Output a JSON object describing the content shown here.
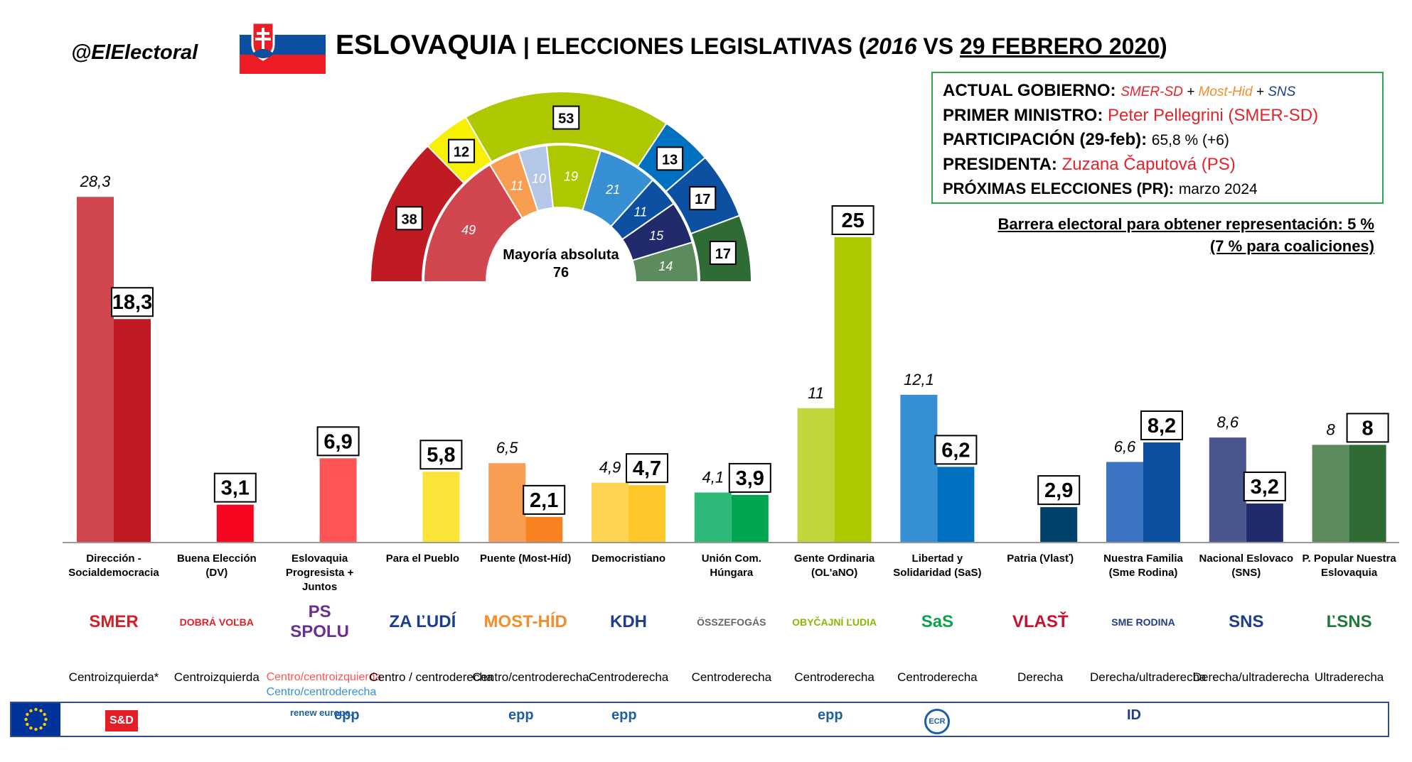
{
  "handle": "@ElElectoral",
  "title": {
    "country": "ESLOVAQUIA",
    "sep": " | ",
    "main": "ELECCIONES LEGISLATIVAS (",
    "year_prev": "2016",
    "vs": " VS ",
    "date_new": "29 FEBRERO 2020",
    "close": ")"
  },
  "info": {
    "gov_label": "ACTUAL GOBIERNO:",
    "gov_p1": "SMER-SD",
    "plus1": " + ",
    "gov_p2": "Most-Hid",
    "plus2": " + ",
    "gov_p3": "SNS",
    "pm_label": "PRIMER MINISTRO:",
    "pm_value": "Peter Pellegrini (SMER-SD)",
    "turnout_label": "PARTICIPACIÓN (29-feb):",
    "turnout_value": "65,8 % (+6)",
    "pres_label": "PRESIDENTA:",
    "pres_value": "Zuzana Čaputová (PS)",
    "next_label": "PRÓXIMAS ELECCIONES (PR):",
    "next_value": "marzo 2024"
  },
  "barrier": {
    "line1": "Barrera electoral para obtener representación: 5 %",
    "line2": "(7 % para coaliciones)"
  },
  "colors": {
    "accent_green": "#2ea84a",
    "eu_blue": "#2f4f8f"
  },
  "chart_data": {
    "type": "bar",
    "series": [
      {
        "name": "2016",
        "style": "italic"
      },
      {
        "name": "29 FEBRERO 2020",
        "style": "boxed-bold"
      }
    ],
    "ylim": [
      0,
      30
    ],
    "categories": [
      {
        "label": "Dirección - Socialdemocracia",
        "v2016": 28.3,
        "l2016": "28,3",
        "v2020": 18.3,
        "l2020": "18,3",
        "c2016": "#d1464f",
        "c2020": "#c01b22",
        "ideology": "Centroizquierda*",
        "logo": "SMER",
        "logoColor": "#d32028"
      },
      {
        "label": "Buena Elección (DV)",
        "v2016": null,
        "l2016": "",
        "v2020": 3.1,
        "l2020": "3,1",
        "c2016": "",
        "c2020": "#f5051f",
        "ideology": "Centroizquierda",
        "logo": "DOBRÁ VOĽBA",
        "logoColor": "#e41e26"
      },
      {
        "label": "Eslovaquia Progresista + Juntos",
        "v2016": null,
        "l2016": "",
        "v2020": 6.9,
        "l2020": "6,9",
        "c2016": "",
        "c2020": "#ff5455",
        "ideology": "Centro/centroizquierda",
        "ideology2": "Centro/centroderecha",
        "logo": "PS SPOLU",
        "logoColor": "#6b2f93"
      },
      {
        "label": "Para el Pueblo",
        "v2016": null,
        "l2016": "",
        "v2020": 5.8,
        "l2020": "5,8",
        "c2016": "",
        "c2020": "#fce33a",
        "ideology": "Centro / centroderecha",
        "logo": "ZA ĽUDÍ",
        "logoColor": "#1a3e8c"
      },
      {
        "label": "Puente (Most-Híd)",
        "v2016": 6.5,
        "l2016": "6,5",
        "v2020": 2.1,
        "l2020": "2,1",
        "c2016": "#f89e52",
        "c2020": "#fa8120",
        "ideology": "Centro/centroderecha",
        "logo": "MOST-HÍD",
        "logoColor": "#f28e2b"
      },
      {
        "label": "Democristiano",
        "v2016": 4.9,
        "l2016": "4,9",
        "v2020": 4.7,
        "l2020": "4,7",
        "c2016": "#fdd553",
        "c2020": "#fdc72a",
        "ideology": "Centroderecha",
        "logo": "KDH",
        "logoColor": "#1f3d8a"
      },
      {
        "label": "Unión Com. Húngara",
        "v2016": 4.1,
        "l2016": "4,1",
        "v2020": 3.9,
        "l2020": "3,9",
        "c2016": "#2fb979",
        "c2020": "#00a54f",
        "ideology": "Centroderecha",
        "logo": "ÖSSZEFOGÁS",
        "logoColor": "#666666"
      },
      {
        "label": "Gente Ordinaria (OL'aNO)",
        "v2016": 11,
        "l2016": "11",
        "v2020": 25,
        "l2020": "25",
        "c2016": "#c2d53b",
        "c2020": "#adc800",
        "ideology": "Centroderecha",
        "logo": "OBYČAJNÍ ĽUDIA",
        "logoColor": "#8ab800"
      },
      {
        "label": "Libertad y Solidaridad (SaS)",
        "v2016": 12.1,
        "l2016": "12,1",
        "v2020": 6.2,
        "l2020": "6,2",
        "c2016": "#3790d4",
        "c2020": "#0070c0",
        "ideology": "Centroderecha",
        "logo": "SaS",
        "logoColor": "#0fa14b"
      },
      {
        "label": "Patria (Vlasť)",
        "v2016": null,
        "l2016": "",
        "v2020": 2.9,
        "l2020": "2,9",
        "c2016": "",
        "c2020": "#00426b",
        "ideology": "Derecha",
        "logo": "VLASŤ",
        "logoColor": "#c8102e"
      },
      {
        "label": "Nuestra Familia (Sme Rodina)",
        "v2016": 6.6,
        "l2016": "6,6",
        "v2020": 8.2,
        "l2020": "8,2",
        "c2016": "#3a74c2",
        "c2020": "#0d4fa0",
        "ideology": "Derecha/ultraderecha",
        "logo": "SME RODINA",
        "logoColor": "#1f3d8a"
      },
      {
        "label": "Nacional Eslovaco (SNS)",
        "v2016": 8.6,
        "l2016": "8,6",
        "v2020": 3.2,
        "l2020": "3,2",
        "c2016": "#4a568d",
        "c2020": "#212a6b",
        "ideology": "Derecha/ultraderecha",
        "logo": "SNS",
        "logoColor": "#1f3d8a"
      },
      {
        "label": "P. Popular Nuestra Eslovaquia",
        "v2016": 8,
        "l2016": "8",
        "v2020": 8,
        "l2020": "8",
        "c2016": "#5c8c5e",
        "c2020": "#2f6b34",
        "ideology": "Ultraderecha",
        "logo": "ĽSNS",
        "logoColor": "#1f7a3a"
      }
    ],
    "parliament": {
      "center_label": "Mayoría absoluta",
      "center_value": "76",
      "outer_2020": [
        {
          "seats": 38,
          "label": "38",
          "color": "#c01b22"
        },
        {
          "seats": 12,
          "label": "12",
          "color": "#f7f000"
        },
        {
          "seats": 53,
          "label": "53",
          "color": "#adc800"
        },
        {
          "seats": 13,
          "label": "13",
          "color": "#0070c0"
        },
        {
          "seats": 17,
          "label": "17",
          "color": "#0d4fa0"
        },
        {
          "seats": 17,
          "label": "17",
          "color": "#2f6b34"
        }
      ],
      "inner_2016": [
        {
          "seats": 49,
          "label": "49",
          "color": "#d1464f"
        },
        {
          "seats": 11,
          "label": "11",
          "color": "#f89e52"
        },
        {
          "seats": 10,
          "label": "10",
          "color": "#b4c7e7"
        },
        {
          "seats": 19,
          "label": "19",
          "color": "#adc800"
        },
        {
          "seats": 21,
          "label": "21",
          "color": "#3790d4"
        },
        {
          "seats": 11,
          "label": "11",
          "color": "#0d4fa0"
        },
        {
          "seats": 15,
          "label": "15",
          "color": "#212a6b"
        },
        {
          "seats": 14,
          "label": "14",
          "color": "#5c8c5e"
        }
      ]
    }
  },
  "eu_groups": [
    {
      "name": "S&D",
      "color": "#e41e26"
    },
    {
      "name": "renew europe.",
      "color": "#1f5fa0"
    },
    {
      "name": "epp",
      "color": "#1f5fa0"
    },
    {
      "name": "epp",
      "color": "#1f5fa0"
    },
    {
      "name": "epp",
      "color": "#1f5fa0"
    },
    {
      "name": "epp",
      "color": "#1f5fa0"
    },
    {
      "name": "ECR",
      "color": "#1f5fa0"
    },
    {
      "name": "ID",
      "color": "#1f3d8a"
    }
  ]
}
